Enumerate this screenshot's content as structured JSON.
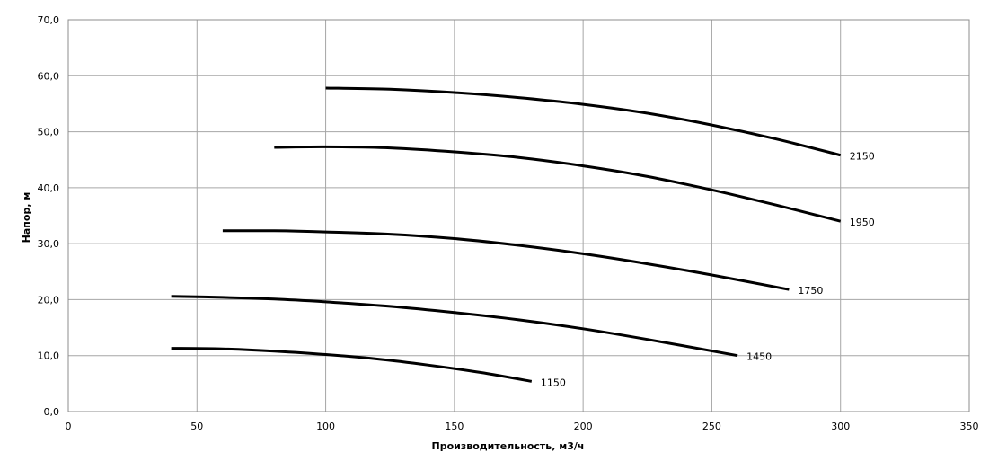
{
  "chart_data": {
    "type": "line",
    "title": "",
    "xlabel": "Производительность,  м3/ч",
    "ylabel": "Напор, м",
    "xlim": [
      0,
      350
    ],
    "ylim": [
      0,
      70
    ],
    "x_ticks": [
      "0",
      "50",
      "100",
      "150",
      "200",
      "250",
      "300",
      "350"
    ],
    "y_ticks": [
      "0,0",
      "10,0",
      "20,0",
      "30,0",
      "40,0",
      "50,0",
      "60,0",
      "70,0"
    ],
    "grid": true,
    "legend": "none",
    "series": [
      {
        "name": "2150",
        "x": [
          100,
          125,
          150,
          175,
          200,
          225,
          250,
          275,
          300
        ],
        "y": [
          57.8,
          57.6,
          57.0,
          56.1,
          54.9,
          53.3,
          51.2,
          48.7,
          45.8
        ]
      },
      {
        "name": "1950",
        "x": [
          80,
          100,
          125,
          150,
          175,
          200,
          225,
          250,
          275,
          300
        ],
        "y": [
          47.2,
          47.3,
          47.1,
          46.4,
          45.4,
          43.9,
          42.0,
          39.6,
          36.9,
          34.0
        ]
      },
      {
        "name": "1750",
        "x": [
          60,
          80,
          100,
          125,
          150,
          175,
          200,
          225,
          250,
          280
        ],
        "y": [
          32.3,
          32.3,
          32.1,
          31.7,
          30.9,
          29.7,
          28.2,
          26.4,
          24.4,
          21.8
        ]
      },
      {
        "name": "1450",
        "x": [
          40,
          60,
          80,
          100,
          125,
          150,
          175,
          200,
          225,
          260
        ],
        "y": [
          20.6,
          20.4,
          20.1,
          19.6,
          18.8,
          17.7,
          16.4,
          14.8,
          12.9,
          10.0
        ]
      },
      {
        "name": "1150",
        "x": [
          40,
          60,
          80,
          100,
          120,
          140,
          160,
          180
        ],
        "y": [
          11.3,
          11.2,
          10.8,
          10.2,
          9.4,
          8.3,
          7.0,
          5.4
        ]
      }
    ]
  }
}
